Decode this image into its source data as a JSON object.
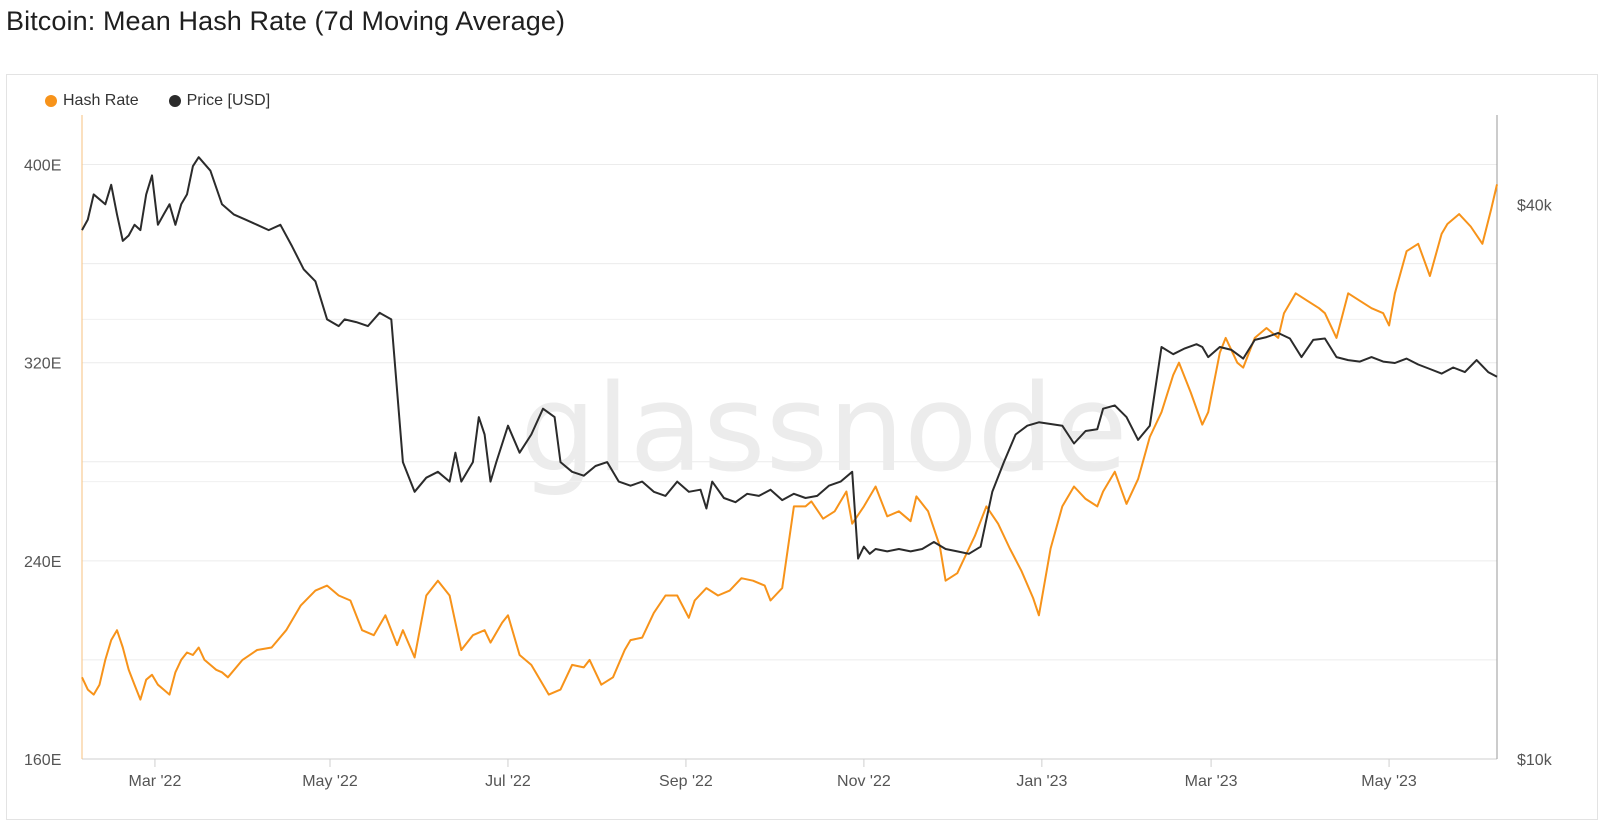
{
  "page": {
    "title": "Bitcoin: Mean Hash Rate (7d Moving Average)",
    "watermark": "glassnode"
  },
  "legend": [
    {
      "label": "Hash Rate",
      "color": "#f7931a"
    },
    {
      "label": "Price [USD]",
      "color": "#2b2b2b"
    }
  ],
  "chart_data": {
    "type": "line",
    "title": "Bitcoin: Mean Hash Rate (7d Moving Average)",
    "x_range_days": [
      0,
      485
    ],
    "x_start": "2022-02-01",
    "x_ticks": [
      {
        "label": "Mar '22",
        "day": 25
      },
      {
        "label": "May '22",
        "day": 85
      },
      {
        "label": "Jul '22",
        "day": 146
      },
      {
        "label": "Sep '22",
        "day": 207
      },
      {
        "label": "Nov '22",
        "day": 268
      },
      {
        "label": "Jan '23",
        "day": 329
      },
      {
        "label": "Mar '23",
        "day": 387
      },
      {
        "label": "May '23",
        "day": 448
      }
    ],
    "y_left": {
      "unit": "E",
      "range": [
        160,
        420
      ],
      "ticks": [
        {
          "label": "160E",
          "value": 160
        },
        {
          "label": "240E",
          "value": 240
        },
        {
          "label": "320E",
          "value": 320
        },
        {
          "label": "400E",
          "value": 400
        }
      ],
      "gridlines": [
        200,
        280,
        360
      ]
    },
    "y_right": {
      "unit": "USD",
      "scale": "log",
      "range": [
        10000,
        50000
      ],
      "ticks": [
        {
          "label": "$10k",
          "value": 10000
        },
        {
          "label": "$40k",
          "value": 40000
        }
      ],
      "gridlines": [
        20000,
        30000
      ]
    },
    "series": [
      {
        "name": "Hash Rate",
        "axis": "left",
        "color": "#f7931a",
        "x": [
          0,
          2,
          4,
          6,
          8,
          10,
          12,
          14,
          16,
          18,
          20,
          22,
          24,
          26,
          28,
          30,
          32,
          34,
          36,
          38,
          40,
          42,
          44,
          46,
          48,
          50,
          55,
          60,
          65,
          70,
          75,
          80,
          84,
          88,
          92,
          96,
          100,
          104,
          108,
          110,
          114,
          118,
          122,
          126,
          130,
          134,
          138,
          140,
          144,
          146,
          150,
          154,
          158,
          160,
          164,
          168,
          172,
          174,
          178,
          182,
          186,
          188,
          192,
          196,
          200,
          204,
          208,
          210,
          214,
          218,
          222,
          226,
          230,
          234,
          236,
          240,
          244,
          248,
          250,
          254,
          258,
          262,
          264,
          268,
          272,
          276,
          280,
          284,
          286,
          290,
          294,
          296,
          300,
          304,
          306,
          310,
          314,
          318,
          322,
          326,
          328,
          332,
          336,
          340,
          344,
          348,
          350,
          354,
          358,
          362,
          366,
          370,
          374,
          376,
          380,
          384,
          386,
          390,
          392,
          396,
          398,
          402,
          406,
          410,
          412,
          416,
          420,
          424,
          426,
          430,
          434,
          438,
          442,
          446,
          448,
          450,
          454,
          458,
          462,
          466,
          468,
          472,
          476,
          480,
          483,
          485
        ],
        "values": [
          193,
          188,
          186,
          190,
          200,
          208,
          212,
          205,
          196,
          190,
          184,
          192,
          194,
          190,
          188,
          186,
          195,
          200,
          203,
          202,
          205,
          200,
          198,
          196,
          195,
          193,
          200,
          204,
          205,
          212,
          222,
          228,
          230,
          226,
          224,
          212,
          210,
          218,
          206,
          212,
          201,
          226,
          232,
          226,
          204,
          210,
          212,
          207,
          215,
          218,
          202,
          198,
          190,
          186,
          188,
          198,
          197,
          200,
          190,
          193,
          204,
          208,
          209,
          219,
          226,
          226,
          217,
          224,
          229,
          226,
          228,
          233,
          232,
          230,
          224,
          229,
          262,
          262,
          264,
          257,
          260,
          268,
          255,
          262,
          270,
          258,
          260,
          256,
          266,
          260,
          246,
          232,
          235,
          245,
          250,
          262,
          255,
          245,
          236,
          225,
          218,
          245,
          262,
          270,
          265,
          262,
          268,
          276,
          263,
          273,
          290,
          300,
          315,
          320,
          308,
          295,
          300,
          324,
          330,
          320,
          318,
          330,
          334,
          330,
          340,
          348,
          345,
          342,
          340,
          330,
          348,
          345,
          342,
          340,
          335,
          348,
          365,
          368,
          355,
          372,
          376,
          380,
          375,
          368,
          382,
          392
        ]
      },
      {
        "name": "Price [USD]",
        "axis": "right",
        "color": "#2b2b2b",
        "x": [
          0,
          2,
          4,
          6,
          8,
          10,
          12,
          14,
          16,
          18,
          20,
          22,
          24,
          26,
          28,
          30,
          32,
          34,
          36,
          38,
          40,
          44,
          48,
          52,
          56,
          60,
          64,
          68,
          72,
          76,
          80,
          84,
          88,
          90,
          94,
          98,
          102,
          106,
          110,
          114,
          118,
          122,
          126,
          128,
          130,
          134,
          136,
          138,
          140,
          142,
          146,
          150,
          154,
          158,
          162,
          164,
          168,
          172,
          176,
          180,
          184,
          188,
          192,
          196,
          200,
          204,
          208,
          212,
          214,
          216,
          220,
          224,
          228,
          232,
          236,
          240,
          244,
          248,
          252,
          256,
          260,
          264,
          266,
          268,
          270,
          272,
          276,
          280,
          284,
          288,
          292,
          296,
          300,
          304,
          308,
          312,
          316,
          320,
          324,
          328,
          332,
          336,
          340,
          344,
          348,
          350,
          354,
          358,
          362,
          366,
          370,
          374,
          378,
          382,
          384,
          386,
          390,
          394,
          398,
          402,
          406,
          410,
          414,
          418,
          422,
          426,
          430,
          434,
          438,
          442,
          446,
          450,
          454,
          458,
          462,
          466,
          470,
          474,
          478,
          482,
          485
        ],
        "values": [
          37500,
          38500,
          41000,
          40500,
          40000,
          42000,
          39000,
          36500,
          37000,
          38000,
          37500,
          41000,
          43000,
          38000,
          39000,
          40000,
          38000,
          40000,
          41000,
          44000,
          45000,
          43500,
          40000,
          39000,
          38500,
          38000,
          37500,
          38000,
          36000,
          34000,
          33000,
          30000,
          29500,
          30000,
          29800,
          29500,
          30500,
          30000,
          21000,
          19500,
          20200,
          20500,
          20000,
          21500,
          20000,
          21000,
          23500,
          22500,
          20000,
          21000,
          23000,
          21500,
          22500,
          24000,
          23500,
          21000,
          20500,
          20300,
          20800,
          21000,
          20000,
          19800,
          20000,
          19500,
          19300,
          20000,
          19500,
          19600,
          18700,
          20000,
          19200,
          19000,
          19400,
          19300,
          19600,
          19100,
          19400,
          19200,
          19300,
          19800,
          20000,
          20500,
          16500,
          17000,
          16700,
          16900,
          16800,
          16900,
          16800,
          16900,
          17200,
          16900,
          16800,
          16700,
          17000,
          19500,
          21000,
          22500,
          23000,
          23200,
          23100,
          23000,
          22000,
          22700,
          22800,
          24000,
          24200,
          23500,
          22200,
          23000,
          28000,
          27500,
          27900,
          28200,
          28000,
          27300,
          28000,
          27800,
          27200,
          28500,
          28700,
          29000,
          28600,
          27300,
          28500,
          28600,
          27300,
          27100,
          27000,
          27300,
          27000,
          26900,
          27200,
          26800,
          26500,
          26200,
          26600,
          26300,
          27100,
          26300,
          26000
        ]
      }
    ]
  }
}
